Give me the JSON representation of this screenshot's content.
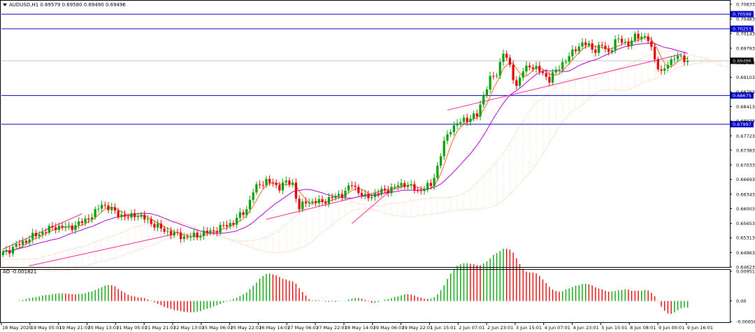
{
  "header": {
    "symbol_line": "AUDUSD,H1  0.69579 0.69580 0.69490 0.69496",
    "ao_label": "AO -0.001821"
  },
  "colors": {
    "bull": "#00a000",
    "bear": "#e00000",
    "level_line": "#0000c8",
    "level_tag_bg": "#0000c8",
    "ma_fast": "#ff6020",
    "ma_slow": "#b000d0",
    "trend": "#ff2090",
    "cloud": "#ffb080",
    "price_line": "#c0c0c0"
  },
  "chart_data": [
    {
      "type": "candlestick",
      "title": "AUDUSD,H1",
      "ohlc_header": [
        "0.69579",
        "0.69580",
        "0.69490",
        "0.69496"
      ],
      "y_ticks": [
        "0.70833",
        "0.70483",
        "0.70143",
        "0.69793",
        "0.69453",
        "0.69103",
        "0.68763",
        "0.68413",
        "0.68073",
        "0.67723",
        "0.67383",
        "0.67033",
        "0.66693",
        "0.66343",
        "0.66003",
        "0.65653",
        "0.65313",
        "0.64963",
        "0.64623"
      ],
      "ylim": [
        0.64623,
        0.70833
      ],
      "horizontal_levels": [
        "0.70598",
        "0.70253",
        "0.68675",
        "0.67997"
      ],
      "current_price": "0.69496",
      "x_ticks": [
        "18 May 2020",
        "19 May 05:01",
        "19 May 21:01",
        "20 May 13:01",
        "21 May 05:01",
        "21 May 21:01",
        "22 May 13:01",
        "25 May 06:01",
        "25 May 22:01",
        "26 May 14:01",
        "27 May 06:01",
        "27 May 22:01",
        "28 May 14:01",
        "29 May 06:01",
        "29 May 22:01",
        "1 Jun 15:01",
        "2 Jun 07:01",
        "2 Jun 23:01",
        "3 Jun 15:01",
        "4 Jun 07:01",
        "4 Jun 23:01",
        "5 Jun 15:01",
        "8 Jun 08:01",
        "9 Jun 00:01",
        "9 Jun 16:01"
      ],
      "close_path": [
        [
          0,
          0.6495
        ],
        [
          4,
          0.6512
        ],
        [
          8,
          0.653
        ],
        [
          12,
          0.6545
        ],
        [
          16,
          0.6558
        ],
        [
          20,
          0.6555
        ],
        [
          24,
          0.6568
        ],
        [
          28,
          0.659
        ],
        [
          30,
          0.6612
        ],
        [
          34,
          0.6592
        ],
        [
          38,
          0.6578
        ],
        [
          40,
          0.6588
        ],
        [
          44,
          0.6572
        ],
        [
          48,
          0.6552
        ],
        [
          52,
          0.654
        ],
        [
          56,
          0.6532
        ],
        [
          60,
          0.654
        ],
        [
          64,
          0.6548
        ],
        [
          68,
          0.6562
        ],
        [
          70,
          0.6568
        ],
        [
          74,
          0.66
        ],
        [
          76,
          0.664
        ],
        [
          78,
          0.666
        ],
        [
          80,
          0.6665
        ],
        [
          84,
          0.6652
        ],
        [
          86,
          0.6662
        ],
        [
          88,
          0.666
        ],
        [
          90,
          0.6598
        ],
        [
          92,
          0.6618
        ],
        [
          96,
          0.6615
        ],
        [
          100,
          0.6625
        ],
        [
          104,
          0.664
        ],
        [
          106,
          0.6658
        ],
        [
          110,
          0.6625
        ],
        [
          114,
          0.6638
        ],
        [
          118,
          0.6648
        ],
        [
          122,
          0.666
        ],
        [
          126,
          0.6642
        ],
        [
          130,
          0.6655
        ],
        [
          132,
          0.67
        ],
        [
          134,
          0.6755
        ],
        [
          136,
          0.679
        ],
        [
          140,
          0.681
        ],
        [
          142,
          0.6815
        ],
        [
          144,
          0.682
        ],
        [
          146,
          0.687
        ],
        [
          148,
          0.6905
        ],
        [
          150,
          0.692
        ],
        [
          152,
          0.697
        ],
        [
          154,
          0.6935
        ],
        [
          156,
          0.689
        ],
        [
          158,
          0.6925
        ],
        [
          160,
          0.694
        ],
        [
          162,
          0.693
        ],
        [
          164,
          0.692
        ],
        [
          166,
          0.6905
        ],
        [
          168,
          0.6925
        ],
        [
          170,
          0.6945
        ],
        [
          172,
          0.6958
        ],
        [
          174,
          0.698
        ],
        [
          176,
          0.699
        ],
        [
          178,
          0.6985
        ],
        [
          180,
          0.6975
        ],
        [
          182,
          0.6985
        ],
        [
          184,
          0.697
        ],
        [
          186,
          0.6995
        ],
        [
          188,
          0.6998
        ],
        [
          190,
          0.6988
        ],
        [
          192,
          0.7005
        ],
        [
          194,
          0.701
        ],
        [
          196,
          0.6998
        ],
        [
          198,
          0.6955
        ],
        [
          200,
          0.692
        ],
        [
          202,
          0.694
        ],
        [
          204,
          0.6962
        ],
        [
          206,
          0.6955
        ],
        [
          208,
          0.6949
        ]
      ],
      "ao_ylim": [
        -0.006565,
        0.009514
      ],
      "ao_ticks": [
        "0.009514",
        "0.00",
        "-0.006565"
      ]
    }
  ]
}
